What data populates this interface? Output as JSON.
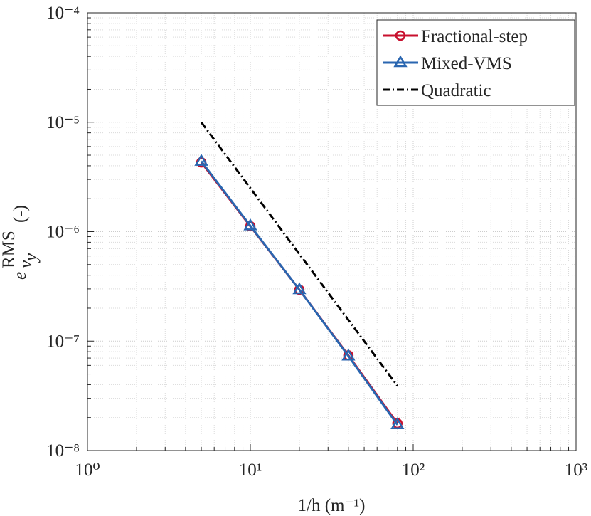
{
  "chart_data": {
    "type": "line",
    "log_x": true,
    "log_y": true,
    "grid": true,
    "minor_grid": true,
    "legend": "top-right",
    "x_label": "1/h (m⁻¹)",
    "y_label": {
      "base": "e",
      "sup": "RMS",
      "sub": "v",
      "subsub": "y",
      "unit": "(-)"
    },
    "xlim": [
      1,
      1000
    ],
    "xticks": [
      {
        "value": 1,
        "label": "10⁰"
      },
      {
        "value": 10,
        "label": "10¹"
      },
      {
        "value": 100,
        "label": "10²"
      },
      {
        "value": 1000,
        "label": "10³"
      }
    ],
    "ylim": [
      1e-08,
      0.0001
    ],
    "yticks": [
      {
        "value": 1e-08,
        "label": "10⁻⁸"
      },
      {
        "value": 1e-07,
        "label": "10⁻⁷"
      },
      {
        "value": 1e-06,
        "label": "10⁻⁶"
      },
      {
        "value": 1e-05,
        "label": "10⁻⁵"
      },
      {
        "value": 0.0001,
        "label": "10⁻⁴"
      }
    ],
    "series": [
      {
        "name": "Fractional-step",
        "color": "#c8102e",
        "marker": "circle",
        "dash": "solid",
        "x": [
          5,
          10,
          20,
          40,
          80
        ],
        "values": [
          4.3e-06,
          1.12e-06,
          2.95e-07,
          7.4e-08,
          1.77e-08
        ]
      },
      {
        "name": "Mixed-VMS",
        "color": "#2a66b0",
        "marker": "triangle",
        "dash": "solid",
        "x": [
          5,
          10,
          20,
          40,
          80
        ],
        "values": [
          4.4e-06,
          1.13e-06,
          2.95e-07,
          7.3e-08,
          1.72e-08
        ]
      },
      {
        "name": "Quadratic",
        "color": "#000000",
        "marker": "none",
        "dash": "dashdot",
        "x": [
          5,
          80
        ],
        "values": [
          1e-05,
          3.9e-08
        ]
      }
    ]
  }
}
